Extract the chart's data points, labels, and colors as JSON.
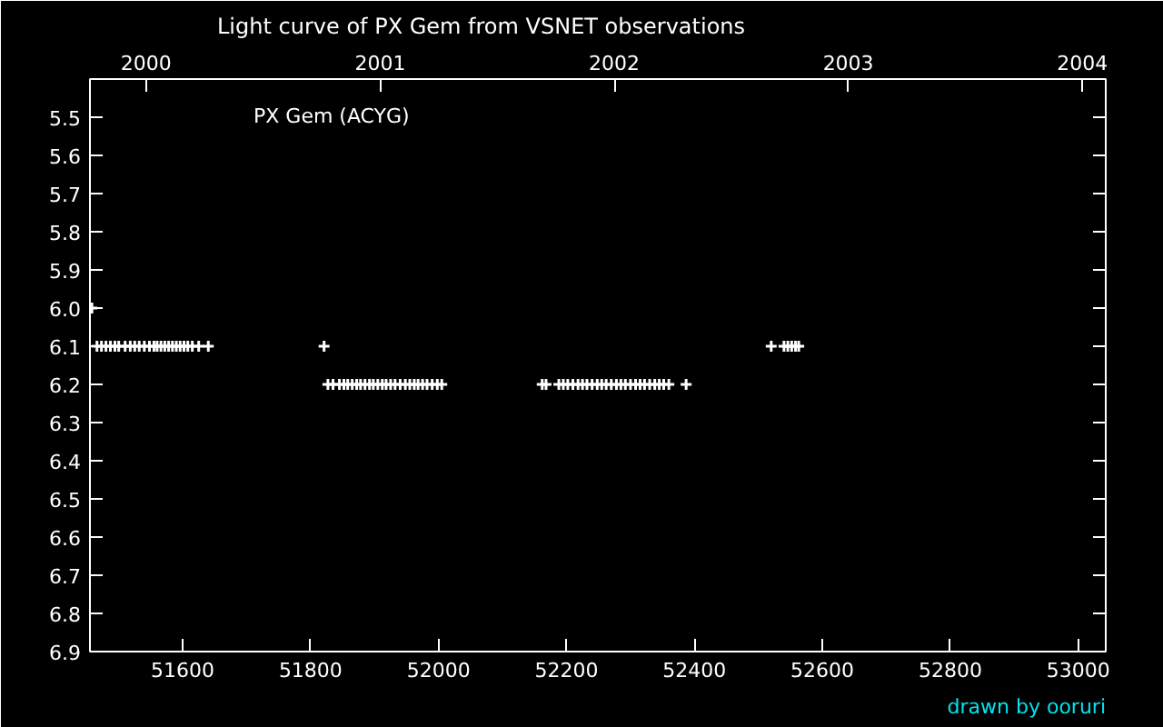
{
  "chart_data": {
    "type": "scatter",
    "title": "Light curve of PX Gem from  VSNET  observations",
    "annotations": [
      "PX Gem (ACYG)",
      "drawn by ooruri"
    ],
    "xlim": [
      51455,
      53043
    ],
    "xticks": [
      51600,
      51800,
      52000,
      52200,
      52400,
      52600,
      52800,
      53000
    ],
    "x2lim": [
      1999.76,
      2004.1
    ],
    "x2ticks": [
      2000,
      2001,
      2002,
      2003,
      2004
    ],
    "ylim": [
      6.9,
      5.4
    ],
    "yticks": [
      {
        "value": 5.5,
        "label": "5.5"
      },
      {
        "value": 5.6,
        "label": "5.6"
      },
      {
        "value": 5.7,
        "label": "5.7"
      },
      {
        "value": 5.8,
        "label": "5.8"
      },
      {
        "value": 5.9,
        "label": "5.9"
      },
      {
        "value": 6.0,
        "label": "6.0"
      },
      {
        "value": 6.1,
        "label": "6.1"
      },
      {
        "value": 6.2,
        "label": "6.2"
      },
      {
        "value": 6.3,
        "label": "6.3"
      },
      {
        "value": 6.4,
        "label": "6.4"
      },
      {
        "value": 6.5,
        "label": "6.5"
      },
      {
        "value": 6.6,
        "label": "6.6"
      },
      {
        "value": 6.7,
        "label": "6.7"
      },
      {
        "value": 6.8,
        "label": "6.8"
      },
      {
        "value": 6.9,
        "label": "6.9"
      }
    ],
    "grid": false,
    "marker": "cross",
    "series": [
      {
        "color": "#ffffff",
        "x": [
          51458,
          51466,
          51473,
          51480,
          51487,
          51494,
          51500,
          51510,
          51518,
          51525,
          51532,
          51540,
          51548,
          51555,
          51560,
          51566,
          51572,
          51578,
          51584,
          51590,
          51596,
          51602,
          51608,
          51615,
          51625,
          51640,
          51821,
          51827,
          51835,
          51845,
          51852,
          51858,
          51865,
          51872,
          51878,
          51885,
          51892,
          51898,
          51905,
          51912,
          51918,
          51925,
          51932,
          51940,
          51948,
          51955,
          51962,
          51968,
          51975,
          51982,
          51990,
          51998,
          52005,
          52162,
          52168,
          52188,
          52195,
          52202,
          52210,
          52218,
          52225,
          52232,
          52240,
          52248,
          52255,
          52262,
          52270,
          52278,
          52285,
          52292,
          52300,
          52308,
          52315,
          52322,
          52330,
          52338,
          52345,
          52352,
          52360,
          52387,
          52520,
          52540,
          52546,
          52552,
          52558,
          52563
        ],
        "values": [
          6.0,
          6.1,
          6.1,
          6.1,
          6.1,
          6.1,
          6.1,
          6.1,
          6.1,
          6.1,
          6.1,
          6.1,
          6.1,
          6.1,
          6.1,
          6.1,
          6.1,
          6.1,
          6.1,
          6.1,
          6.1,
          6.1,
          6.1,
          6.1,
          6.1,
          6.1,
          6.1,
          6.2,
          6.2,
          6.2,
          6.2,
          6.2,
          6.2,
          6.2,
          6.2,
          6.2,
          6.2,
          6.2,
          6.2,
          6.2,
          6.2,
          6.2,
          6.2,
          6.2,
          6.2,
          6.2,
          6.2,
          6.2,
          6.2,
          6.2,
          6.2,
          6.2,
          6.2,
          6.2,
          6.2,
          6.2,
          6.2,
          6.2,
          6.2,
          6.2,
          6.2,
          6.2,
          6.2,
          6.2,
          6.2,
          6.2,
          6.2,
          6.2,
          6.2,
          6.2,
          6.2,
          6.2,
          6.2,
          6.2,
          6.2,
          6.2,
          6.2,
          6.2,
          6.2,
          6.2,
          6.1,
          6.1,
          6.1,
          6.1,
          6.1,
          6.1
        ]
      }
    ]
  }
}
